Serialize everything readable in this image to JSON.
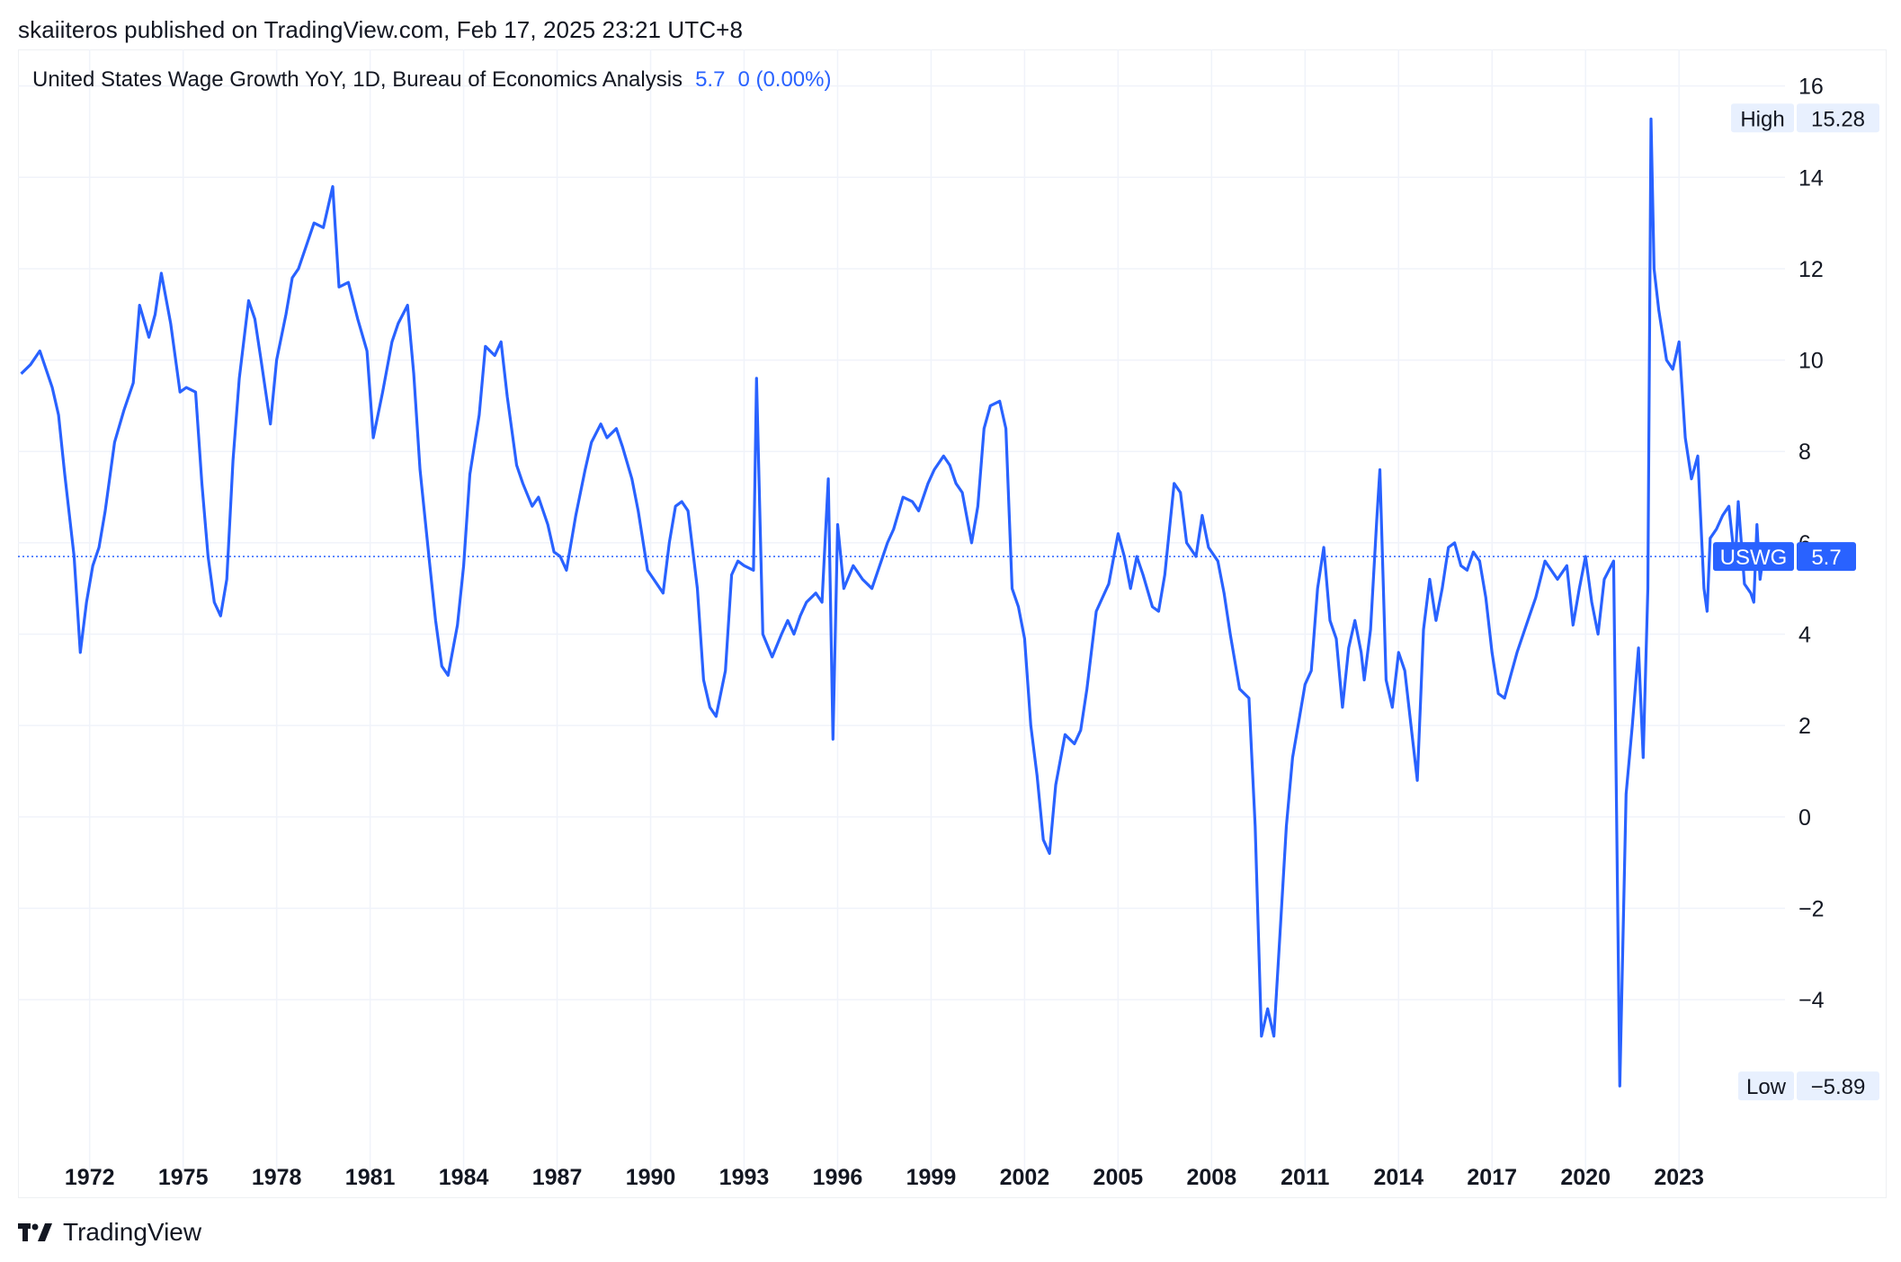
{
  "header": {
    "published": "skaiiteros published on TradingView.com, Feb 17, 2025 23:21 UTC+8"
  },
  "legend": {
    "title": "United States Wage Growth YoY, 1D, Bureau of Economics Analysis",
    "last": "5.7",
    "change": "0 (0.00%)"
  },
  "badges": {
    "high_label": "High",
    "high_value": "15.28",
    "low_label": "Low",
    "low_value": "−5.89",
    "symbol": "USWG",
    "symbol_value": "5.7"
  },
  "footer": {
    "brand": "TradingView"
  },
  "colors": {
    "line": "#2962ff",
    "grid": "#f0f3fa",
    "badge_bg": "#e8f0fe",
    "symbol_bg": "#2962ff"
  },
  "chart_data": {
    "type": "line",
    "title": "United States Wage Growth YoY, 1D, Bureau of Economics Analysis",
    "xlabel": "",
    "ylabel": "",
    "xlim": [
      1969.7,
      2026.4
    ],
    "ylim": [
      -7.5,
      16.8
    ],
    "x_ticks": [
      1972,
      1975,
      1978,
      1981,
      1984,
      1987,
      1990,
      1993,
      1996,
      1999,
      2002,
      2005,
      2008,
      2011,
      2014,
      2017,
      2020,
      2023
    ],
    "y_ticks": [
      16,
      14,
      12,
      10,
      8,
      6,
      4,
      2,
      0,
      -2,
      -4
    ],
    "y_tick_labels": [
      "16",
      "14",
      "12",
      "10",
      "8",
      "6",
      "4",
      "2",
      "0",
      "−2",
      "−4"
    ],
    "last_value": 5.7,
    "high": 15.28,
    "low": -5.89,
    "grid": true,
    "series": [
      {
        "name": "USWG",
        "points": [
          [
            1969.8,
            9.7
          ],
          [
            1970.1,
            9.9
          ],
          [
            1970.4,
            10.2
          ],
          [
            1970.8,
            9.4
          ],
          [
            1971.0,
            8.8
          ],
          [
            1971.2,
            7.5
          ],
          [
            1971.5,
            5.7
          ],
          [
            1971.7,
            3.6
          ],
          [
            1971.9,
            4.7
          ],
          [
            1972.1,
            5.5
          ],
          [
            1972.3,
            5.9
          ],
          [
            1972.5,
            6.7
          ],
          [
            1972.8,
            8.2
          ],
          [
            1973.1,
            8.9
          ],
          [
            1973.4,
            9.5
          ],
          [
            1973.6,
            11.2
          ],
          [
            1973.9,
            10.5
          ],
          [
            1974.1,
            11.0
          ],
          [
            1974.3,
            11.9
          ],
          [
            1974.6,
            10.8
          ],
          [
            1974.9,
            9.3
          ],
          [
            1975.1,
            9.4
          ],
          [
            1975.4,
            9.3
          ],
          [
            1975.6,
            7.3
          ],
          [
            1975.8,
            5.7
          ],
          [
            1976.0,
            4.7
          ],
          [
            1976.2,
            4.4
          ],
          [
            1976.4,
            5.2
          ],
          [
            1976.6,
            7.8
          ],
          [
            1976.8,
            9.6
          ],
          [
            1977.1,
            11.3
          ],
          [
            1977.3,
            10.9
          ],
          [
            1977.5,
            10.0
          ],
          [
            1977.8,
            8.6
          ],
          [
            1978.0,
            10.0
          ],
          [
            1978.3,
            11.0
          ],
          [
            1978.5,
            11.8
          ],
          [
            1978.7,
            12.0
          ],
          [
            1979.0,
            12.6
          ],
          [
            1979.2,
            13.0
          ],
          [
            1979.5,
            12.9
          ],
          [
            1979.8,
            13.8
          ],
          [
            1980.0,
            11.6
          ],
          [
            1980.3,
            11.7
          ],
          [
            1980.6,
            10.9
          ],
          [
            1980.9,
            10.2
          ],
          [
            1981.1,
            8.3
          ],
          [
            1981.4,
            9.3
          ],
          [
            1981.7,
            10.4
          ],
          [
            1981.9,
            10.8
          ],
          [
            1982.2,
            11.2
          ],
          [
            1982.4,
            9.7
          ],
          [
            1982.6,
            7.6
          ],
          [
            1982.9,
            5.6
          ],
          [
            1983.1,
            4.3
          ],
          [
            1983.3,
            3.3
          ],
          [
            1983.5,
            3.1
          ],
          [
            1983.8,
            4.2
          ],
          [
            1984.0,
            5.5
          ],
          [
            1984.2,
            7.5
          ],
          [
            1984.5,
            8.8
          ],
          [
            1984.7,
            10.3
          ],
          [
            1985.0,
            10.1
          ],
          [
            1985.2,
            10.4
          ],
          [
            1985.4,
            9.2
          ],
          [
            1985.7,
            7.7
          ],
          [
            1985.9,
            7.3
          ],
          [
            1986.2,
            6.8
          ],
          [
            1986.4,
            7.0
          ],
          [
            1986.7,
            6.4
          ],
          [
            1986.9,
            5.8
          ],
          [
            1987.1,
            5.7
          ],
          [
            1987.3,
            5.4
          ],
          [
            1987.6,
            6.6
          ],
          [
            1987.9,
            7.6
          ],
          [
            1988.1,
            8.2
          ],
          [
            1988.4,
            8.6
          ],
          [
            1988.6,
            8.3
          ],
          [
            1988.9,
            8.5
          ],
          [
            1989.1,
            8.1
          ],
          [
            1989.4,
            7.4
          ],
          [
            1989.6,
            6.7
          ],
          [
            1989.9,
            5.4
          ],
          [
            1990.1,
            5.2
          ],
          [
            1990.4,
            4.9
          ],
          [
            1990.6,
            6.0
          ],
          [
            1990.8,
            6.8
          ],
          [
            1991.0,
            6.9
          ],
          [
            1991.2,
            6.7
          ],
          [
            1991.5,
            5.0
          ],
          [
            1991.7,
            3.0
          ],
          [
            1991.9,
            2.4
          ],
          [
            1992.1,
            2.2
          ],
          [
            1992.4,
            3.2
          ],
          [
            1992.6,
            5.3
          ],
          [
            1992.8,
            5.6
          ],
          [
            1993.0,
            5.5
          ],
          [
            1993.3,
            5.4
          ],
          [
            1993.4,
            9.6
          ],
          [
            1993.6,
            4.0
          ],
          [
            1993.9,
            3.5
          ],
          [
            1994.2,
            4.0
          ],
          [
            1994.4,
            4.3
          ],
          [
            1994.6,
            4.0
          ],
          [
            1994.8,
            4.4
          ],
          [
            1995.0,
            4.7
          ],
          [
            1995.3,
            4.9
          ],
          [
            1995.5,
            4.7
          ],
          [
            1995.7,
            7.4
          ],
          [
            1995.85,
            1.7
          ],
          [
            1996.0,
            6.4
          ],
          [
            1996.2,
            5.0
          ],
          [
            1996.5,
            5.5
          ],
          [
            1996.8,
            5.2
          ],
          [
            1997.1,
            5.0
          ],
          [
            1997.4,
            5.6
          ],
          [
            1997.6,
            6.0
          ],
          [
            1997.8,
            6.3
          ],
          [
            1998.1,
            7.0
          ],
          [
            1998.4,
            6.9
          ],
          [
            1998.6,
            6.7
          ],
          [
            1998.9,
            7.3
          ],
          [
            1999.1,
            7.6
          ],
          [
            1999.4,
            7.9
          ],
          [
            1999.6,
            7.7
          ],
          [
            1999.8,
            7.3
          ],
          [
            2000.0,
            7.1
          ],
          [
            2000.3,
            6.0
          ],
          [
            2000.5,
            6.8
          ],
          [
            2000.7,
            8.5
          ],
          [
            2000.9,
            9.0
          ],
          [
            2001.2,
            9.1
          ],
          [
            2001.4,
            8.5
          ],
          [
            2001.6,
            5.0
          ],
          [
            2001.8,
            4.6
          ],
          [
            2002.0,
            3.9
          ],
          [
            2002.2,
            2.0
          ],
          [
            2002.4,
            0.9
          ],
          [
            2002.6,
            -0.5
          ],
          [
            2002.8,
            -0.8
          ],
          [
            2003.0,
            0.7
          ],
          [
            2003.3,
            1.8
          ],
          [
            2003.6,
            1.6
          ],
          [
            2003.8,
            1.9
          ],
          [
            2004.0,
            2.8
          ],
          [
            2004.3,
            4.5
          ],
          [
            2004.5,
            4.8
          ],
          [
            2004.7,
            5.1
          ],
          [
            2005.0,
            6.2
          ],
          [
            2005.2,
            5.7
          ],
          [
            2005.4,
            5.0
          ],
          [
            2005.6,
            5.7
          ],
          [
            2005.8,
            5.3
          ],
          [
            2006.1,
            4.6
          ],
          [
            2006.3,
            4.5
          ],
          [
            2006.5,
            5.3
          ],
          [
            2006.8,
            7.3
          ],
          [
            2007.0,
            7.1
          ],
          [
            2007.2,
            6.0
          ],
          [
            2007.5,
            5.7
          ],
          [
            2007.7,
            6.6
          ],
          [
            2007.9,
            5.9
          ],
          [
            2008.2,
            5.6
          ],
          [
            2008.4,
            4.9
          ],
          [
            2008.6,
            4.0
          ],
          [
            2008.9,
            2.8
          ],
          [
            2009.2,
            2.6
          ],
          [
            2009.4,
            -0.2
          ],
          [
            2009.6,
            -4.8
          ],
          [
            2009.8,
            -4.2
          ],
          [
            2010.0,
            -4.8
          ],
          [
            2010.2,
            -2.5
          ],
          [
            2010.4,
            -0.2
          ],
          [
            2010.6,
            1.3
          ],
          [
            2010.8,
            2.1
          ],
          [
            2011.0,
            2.9
          ],
          [
            2011.2,
            3.2
          ],
          [
            2011.4,
            5.0
          ],
          [
            2011.6,
            5.9
          ],
          [
            2011.8,
            4.3
          ],
          [
            2012.0,
            3.9
          ],
          [
            2012.2,
            2.4
          ],
          [
            2012.4,
            3.7
          ],
          [
            2012.6,
            4.3
          ],
          [
            2012.8,
            3.6
          ],
          [
            2012.9,
            3.0
          ],
          [
            2013.1,
            4.1
          ],
          [
            2013.3,
            6.5
          ],
          [
            2013.4,
            7.6
          ],
          [
            2013.6,
            3.0
          ],
          [
            2013.8,
            2.4
          ],
          [
            2014.0,
            3.6
          ],
          [
            2014.2,
            3.2
          ],
          [
            2014.4,
            2.0
          ],
          [
            2014.6,
            0.8
          ],
          [
            2014.8,
            4.1
          ],
          [
            2015.0,
            5.2
          ],
          [
            2015.2,
            4.3
          ],
          [
            2015.4,
            5.0
          ],
          [
            2015.6,
            5.9
          ],
          [
            2015.8,
            6.0
          ],
          [
            2016.0,
            5.5
          ],
          [
            2016.2,
            5.4
          ],
          [
            2016.4,
            5.8
          ],
          [
            2016.6,
            5.6
          ],
          [
            2016.8,
            4.8
          ],
          [
            2017.0,
            3.6
          ],
          [
            2017.2,
            2.7
          ],
          [
            2017.4,
            2.6
          ],
          [
            2017.6,
            3.1
          ],
          [
            2017.8,
            3.6
          ],
          [
            2018.0,
            4.0
          ],
          [
            2018.2,
            4.4
          ],
          [
            2018.4,
            4.8
          ],
          [
            2018.7,
            5.6
          ],
          [
            2018.9,
            5.4
          ],
          [
            2019.1,
            5.2
          ],
          [
            2019.4,
            5.5
          ],
          [
            2019.6,
            4.2
          ],
          [
            2019.8,
            5.0
          ],
          [
            2020.0,
            5.7
          ],
          [
            2020.2,
            4.7
          ],
          [
            2020.4,
            4.0
          ],
          [
            2020.6,
            5.2
          ],
          [
            2020.9,
            5.6
          ],
          [
            2021.1,
            -5.89
          ],
          [
            2021.3,
            0.5
          ],
          [
            2021.5,
            2.0
          ],
          [
            2021.7,
            3.7
          ],
          [
            2021.85,
            1.3
          ],
          [
            2022.0,
            5.0
          ],
          [
            2022.1,
            15.28
          ],
          [
            2022.2,
            12.0
          ],
          [
            2022.35,
            11.1
          ],
          [
            2022.6,
            10.0
          ],
          [
            2022.8,
            9.8
          ],
          [
            2023.0,
            10.4
          ],
          [
            2023.2,
            8.3
          ],
          [
            2023.4,
            7.4
          ],
          [
            2023.6,
            7.9
          ],
          [
            2023.8,
            5.0
          ],
          [
            2023.9,
            4.5
          ],
          [
            2024.0,
            6.1
          ],
          [
            2024.2,
            6.3
          ],
          [
            2024.4,
            6.6
          ],
          [
            2024.6,
            6.8
          ],
          [
            2024.8,
            5.5
          ],
          [
            2024.9,
            6.9
          ],
          [
            2025.1,
            5.1
          ],
          [
            2025.3,
            4.9
          ],
          [
            2025.4,
            4.7
          ],
          [
            2025.5,
            6.4
          ],
          [
            2025.6,
            5.2
          ],
          [
            2025.7,
            5.7
          ]
        ]
      }
    ]
  }
}
